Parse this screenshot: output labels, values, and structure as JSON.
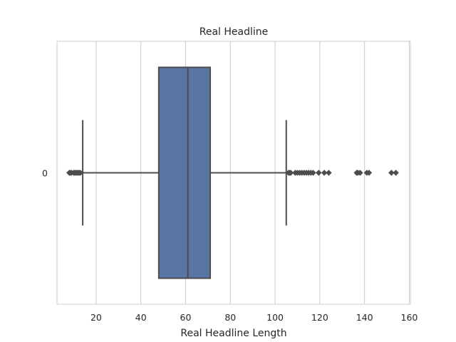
{
  "chart_data": {
    "type": "boxplot",
    "title": "Real Headline",
    "xlabel": "Real Headline Length",
    "ylabel": "",
    "xlim": [
      2.5,
      160.5
    ],
    "xticks": [
      20,
      40,
      60,
      80,
      100,
      120,
      140,
      160
    ],
    "categories": [
      "0"
    ],
    "grid": true,
    "orientation": "horizontal",
    "box": {
      "whisker_low": 14,
      "q1": 48,
      "median": 61,
      "q3": 71,
      "whisker_high": 105
    },
    "outliers": [
      8,
      8.5,
      9,
      10,
      10.5,
      11,
      11.5,
      12,
      12.5,
      13,
      106,
      106.5,
      107,
      109,
      110,
      111,
      112,
      113,
      114,
      115,
      116,
      117,
      119.5,
      122,
      124,
      136.5,
      137,
      138,
      141,
      142,
      152,
      154
    ],
    "colors": {
      "box": "#5875a4",
      "lines": "#4d4d4d",
      "grid": "#cccccc",
      "frame": "#cccccc"
    }
  }
}
